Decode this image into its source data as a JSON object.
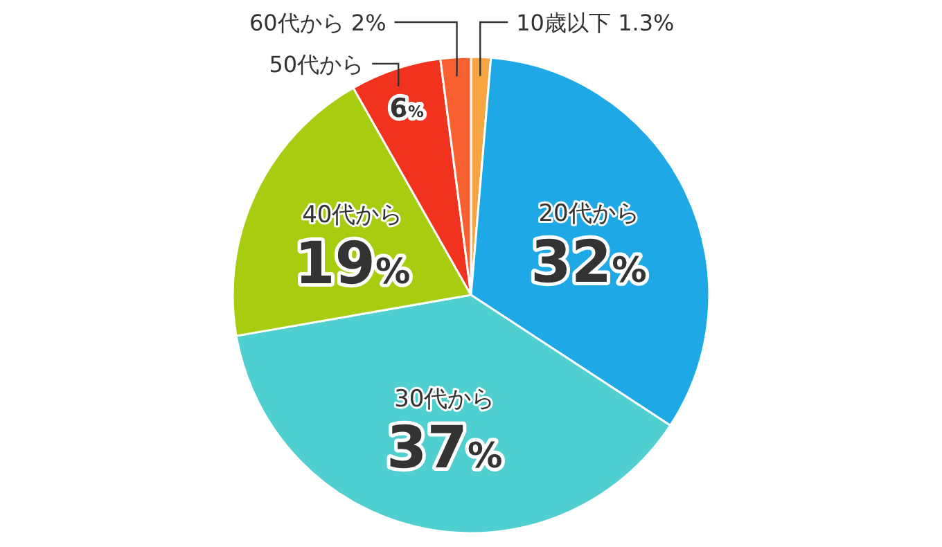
{
  "chart_data": {
    "type": "pie",
    "categories": [
      "10歳以下",
      "20代から",
      "30代から",
      "40代から",
      "50代から",
      "60代から"
    ],
    "values": [
      1.3,
      32,
      37,
      19,
      6,
      2
    ],
    "value_labels": [
      "1.3%",
      "32%",
      "37%",
      "19%",
      "6%",
      "2%"
    ],
    "colors": [
      "#f7a541",
      "#1ea9e6",
      "#4fcfcf",
      "#a8cc10",
      "#f0321e",
      "#f8612f"
    ]
  }
}
